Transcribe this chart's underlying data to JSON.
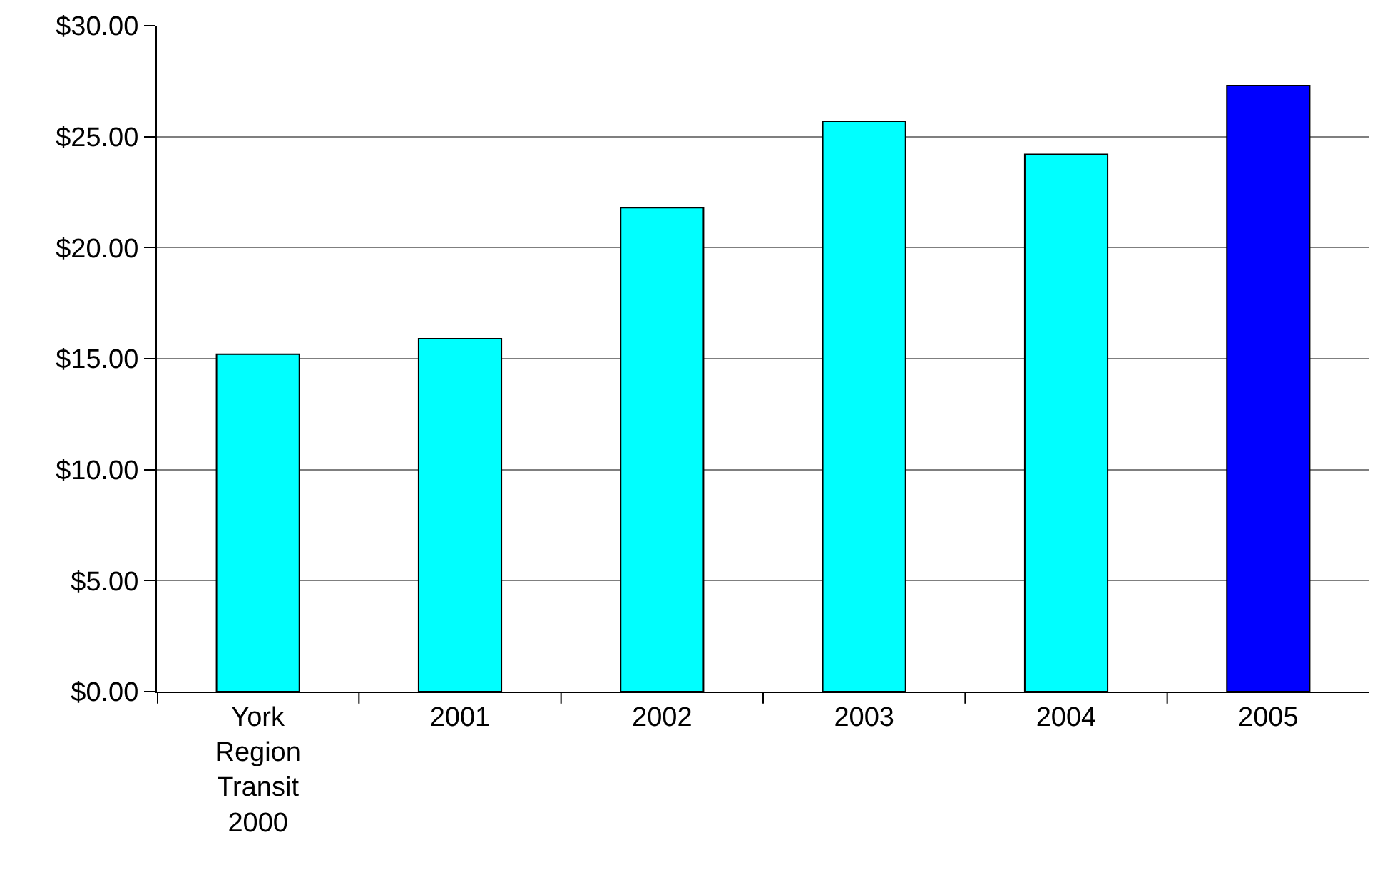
{
  "chart_data": {
    "type": "bar",
    "categories": [
      "York Region Transit 2000",
      "2001",
      "2002",
      "2003",
      "2004",
      "2005"
    ],
    "values": [
      15.2,
      15.9,
      21.8,
      25.7,
      24.2,
      27.3
    ],
    "colors": [
      "#00ffff",
      "#00ffff",
      "#00ffff",
      "#00ffff",
      "#00ffff",
      "#0000ff"
    ],
    "ylim": [
      0,
      30
    ],
    "yticks": [
      {
        "value": 0,
        "label": "$0.00"
      },
      {
        "value": 5,
        "label": "$5.00"
      },
      {
        "value": 10,
        "label": "$10.00"
      },
      {
        "value": 15,
        "label": "$15.00"
      },
      {
        "value": 20,
        "label": "$20.00"
      },
      {
        "value": 25,
        "label": "$25.00"
      },
      {
        "value": 30,
        "label": "$30.00"
      }
    ],
    "grid": "y"
  }
}
